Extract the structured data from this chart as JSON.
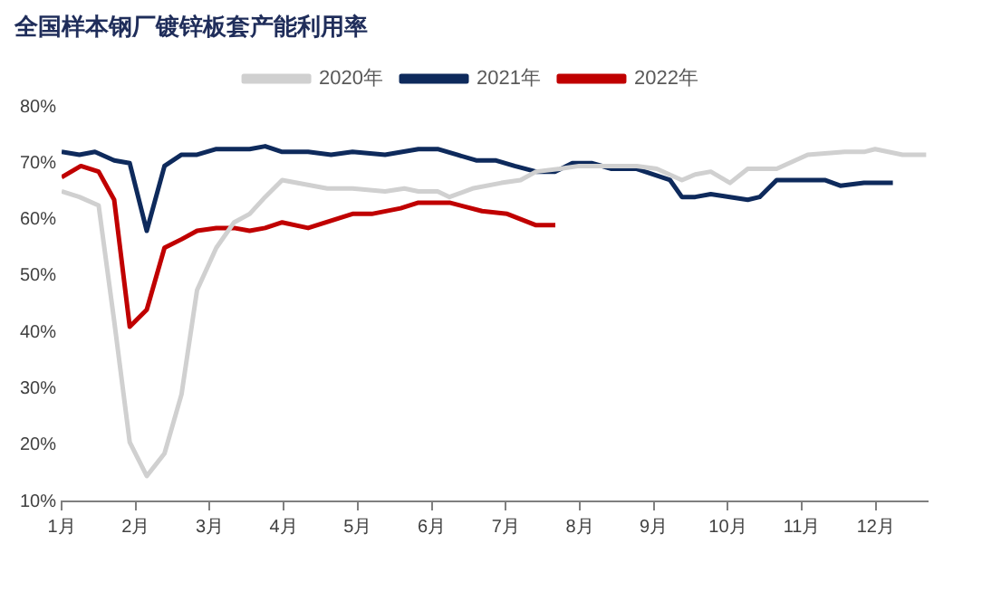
{
  "chart_data": {
    "type": "line",
    "title": "全国样本钢厂镀锌板套产能利用率",
    "xlim": [
      1,
      12.7
    ],
    "xticks": [
      {
        "value": 1,
        "label": "1月"
      },
      {
        "value": 2,
        "label": "2月"
      },
      {
        "value": 3,
        "label": "3月"
      },
      {
        "value": 4,
        "label": "4月"
      },
      {
        "value": 5,
        "label": "5月"
      },
      {
        "value": 6,
        "label": "6月"
      },
      {
        "value": 7,
        "label": "7月"
      },
      {
        "value": 8,
        "label": "8月"
      },
      {
        "value": 9,
        "label": "9月"
      },
      {
        "value": 10,
        "label": "10月"
      },
      {
        "value": 11,
        "label": "11月"
      },
      {
        "value": 12,
        "label": "12月"
      }
    ],
    "ylim": [
      10,
      80
    ],
    "yticks": [
      {
        "value": 10,
        "label": "10%"
      },
      {
        "value": 20,
        "label": "20%"
      },
      {
        "value": 30,
        "label": "30%"
      },
      {
        "value": 40,
        "label": "40%"
      },
      {
        "value": 50,
        "label": "50%"
      },
      {
        "value": 60,
        "label": "60%"
      },
      {
        "value": 70,
        "label": "70%"
      },
      {
        "value": 80,
        "label": "80%"
      }
    ],
    "grid": false,
    "legend": "top",
    "marker": "none",
    "line_style": "solid",
    "series": [
      {
        "name": "2020年",
        "color": "#d0d0d0",
        "x": [
          1.0,
          1.24,
          1.5,
          1.71,
          1.92,
          2.15,
          2.39,
          2.62,
          2.83,
          3.09,
          3.33,
          3.54,
          3.75,
          3.98,
          4.59,
          4.93,
          5.37,
          5.63,
          5.82,
          6.08,
          6.24,
          6.55,
          6.94,
          7.2,
          7.41,
          7.73,
          7.99,
          8.77,
          9.04,
          9.38,
          9.56,
          9.77,
          10.03,
          10.27,
          10.66,
          11.08,
          11.58,
          11.84,
          11.99,
          12.36,
          12.68
        ],
        "values": [
          65,
          64,
          62.5,
          42,
          20.5,
          14.5,
          18.5,
          29,
          47.5,
          55,
          59.5,
          61,
          64,
          67,
          65.5,
          65.5,
          65,
          65.5,
          65,
          65,
          64,
          65.5,
          66.5,
          67,
          68.5,
          69,
          69.5,
          69.5,
          69,
          67,
          68,
          68.5,
          66.5,
          69,
          69,
          71.5,
          72,
          72,
          72.5,
          71.5,
          71.5
        ]
      },
      {
        "name": "2021年",
        "color": "#0e2a5c",
        "x": [
          1.0,
          1.24,
          1.45,
          1.71,
          1.92,
          2.15,
          2.39,
          2.62,
          2.83,
          3.09,
          3.54,
          3.75,
          3.98,
          4.33,
          4.64,
          4.93,
          5.37,
          5.82,
          6.08,
          6.34,
          6.6,
          6.86,
          7.12,
          7.41,
          7.67,
          7.9,
          8.17,
          8.43,
          8.77,
          9.22,
          9.38,
          9.56,
          9.77,
          10.03,
          10.27,
          10.43,
          10.66,
          11.13,
          11.31,
          11.52,
          11.84,
          12.23
        ],
        "values": [
          72,
          71.5,
          72,
          70.5,
          70,
          58,
          69.5,
          71.5,
          71.5,
          72.5,
          72.5,
          73,
          72,
          72,
          71.5,
          72,
          71.5,
          72.5,
          72.5,
          71.5,
          70.5,
          70.5,
          69.5,
          68.5,
          68.5,
          70,
          70,
          69,
          69,
          67,
          64,
          64,
          64.5,
          64,
          63.5,
          64,
          67,
          67,
          67,
          66,
          66.5,
          66.5
        ]
      },
      {
        "name": "2022年",
        "color": "#c00000",
        "x": [
          1.0,
          1.26,
          1.5,
          1.71,
          1.92,
          2.15,
          2.39,
          2.62,
          2.83,
          3.09,
          3.33,
          3.54,
          3.75,
          3.98,
          4.33,
          4.93,
          5.19,
          5.58,
          5.82,
          6.08,
          6.24,
          6.68,
          7.02,
          7.41,
          7.67
        ],
        "values": [
          67.5,
          69.5,
          68.5,
          63.5,
          41,
          44,
          55,
          56.5,
          58,
          58.5,
          58.5,
          58,
          58.5,
          59.5,
          58.5,
          61,
          61,
          62,
          63,
          63,
          63,
          61.5,
          61,
          59,
          59
        ]
      }
    ]
  }
}
